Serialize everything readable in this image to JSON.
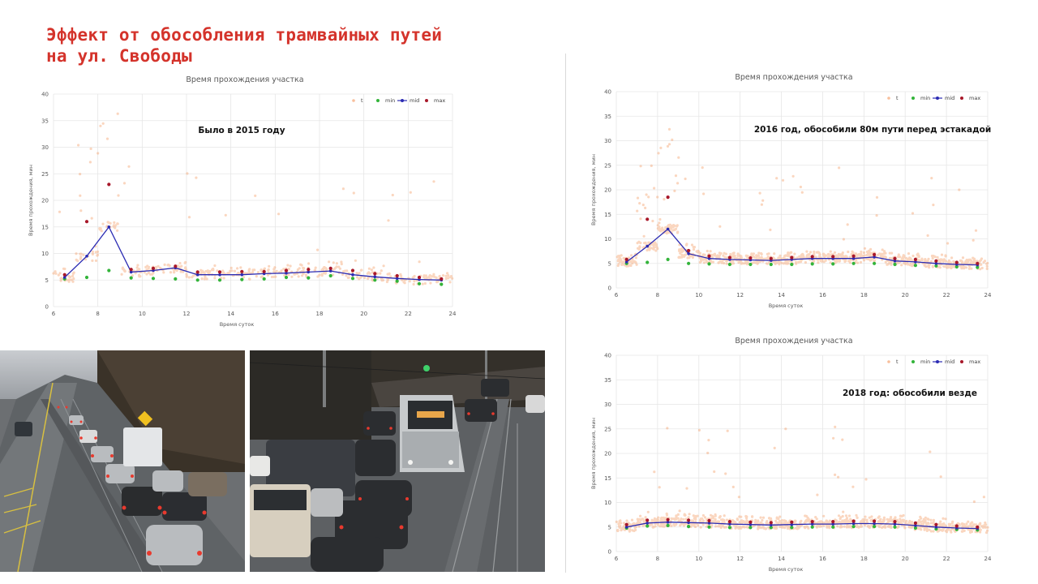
{
  "slide": {
    "title": "Эффект от обособления трамвайных путей\nна ул. Свободы",
    "title_color": "#d4332b"
  },
  "colors": {
    "t": "#f4955a",
    "min": "#33b43a",
    "mid": "#2b2bb3",
    "max": "#a8182a",
    "grid": "#e6e6e6"
  },
  "photos": [
    {
      "name": "left-street-photo",
      "icon": "traffic-jam-photo"
    },
    {
      "name": "right-street-photo",
      "icon": "tram-in-traffic-photo"
    }
  ],
  "chart_data": [
    {
      "type": "scatter",
      "title": "Время прохождения участка",
      "annotation": "Было в 2015 году",
      "xlabel": "Время суток",
      "ylabel": "Время прохождения, мин",
      "xlim": [
        6,
        24
      ],
      "ylim": [
        0,
        40
      ],
      "xticks": [
        "6",
        "8",
        "10",
        "12",
        "14",
        "16",
        "18",
        "20",
        "22",
        "24"
      ],
      "yticks": [
        "0",
        "5",
        "10",
        "15",
        "20",
        "25",
        "30",
        "35",
        "40"
      ],
      "legend": [
        "t",
        "min",
        "mid",
        "max"
      ],
      "legend_position": "top-right",
      "series": [
        {
          "name": "min",
          "x": [
            6.5,
            7.5,
            8.5,
            9.5,
            10.5,
            11.5,
            12.5,
            13.5,
            14.5,
            15.5,
            16.5,
            17.5,
            18.5,
            19.5,
            20.5,
            21.5,
            22.5,
            23.5
          ],
          "y": [
            5.2,
            5.5,
            6.8,
            5.4,
            5.3,
            5.2,
            5.0,
            5.0,
            5.1,
            5.2,
            5.5,
            5.4,
            5.8,
            5.3,
            5.0,
            4.8,
            4.3,
            4.2
          ]
        },
        {
          "name": "mid",
          "x": [
            6.5,
            7.5,
            8.5,
            9.5,
            10.5,
            11.5,
            12.5,
            13.5,
            14.5,
            15.5,
            16.5,
            17.5,
            18.5,
            19.5,
            20.5,
            21.5,
            22.5,
            23.5
          ],
          "y": [
            5.5,
            9.5,
            15.0,
            6.5,
            6.8,
            7.3,
            6.0,
            6.0,
            6.0,
            6.2,
            6.3,
            6.5,
            6.7,
            6.0,
            5.6,
            5.3,
            5.1,
            5.0
          ]
        },
        {
          "name": "max",
          "x": [
            6.5,
            7.5,
            8.5,
            9.5,
            10.5,
            11.5,
            12.5,
            13.5,
            14.5,
            15.5,
            16.5,
            17.5,
            18.5,
            19.5,
            20.5,
            21.5,
            22.5,
            23.5
          ],
          "y": [
            6.0,
            16.0,
            23.0,
            7.0,
            7.2,
            7.6,
            6.5,
            6.5,
            6.6,
            6.6,
            6.8,
            7.0,
            7.2,
            6.8,
            6.2,
            5.8,
            5.5,
            5.2
          ]
        }
      ]
    },
    {
      "type": "scatter",
      "title": "Время прохождения участка",
      "annotation": "2016 год, обособили 80м пути перед эстакадой",
      "xlabel": "Время суток",
      "ylabel": "Время прохождения, мин",
      "xlim": [
        6,
        24
      ],
      "ylim": [
        0,
        40
      ],
      "xticks": [
        "6",
        "8",
        "10",
        "12",
        "14",
        "16",
        "18",
        "20",
        "22",
        "24"
      ],
      "yticks": [
        "0",
        "5",
        "10",
        "15",
        "20",
        "25",
        "30",
        "35",
        "40"
      ],
      "legend": [
        "t",
        "min",
        "mid",
        "max"
      ],
      "legend_position": "top-right",
      "series": [
        {
          "name": "min",
          "x": [
            6.5,
            7.5,
            8.5,
            9.5,
            10.5,
            11.5,
            12.5,
            13.5,
            14.5,
            15.5,
            16.5,
            17.5,
            18.5,
            19.5,
            20.5,
            21.5,
            22.5,
            23.5
          ],
          "y": [
            5.0,
            5.2,
            5.8,
            5.0,
            4.9,
            4.8,
            4.8,
            4.8,
            4.8,
            4.9,
            4.9,
            5.0,
            5.0,
            4.8,
            4.6,
            4.5,
            4.3,
            4.2
          ]
        },
        {
          "name": "mid",
          "x": [
            6.5,
            7.5,
            8.5,
            9.5,
            10.5,
            11.5,
            12.5,
            13.5,
            14.5,
            15.5,
            16.5,
            17.5,
            18.5,
            19.5,
            20.5,
            21.5,
            22.5,
            23.5
          ],
          "y": [
            5.3,
            8.5,
            12.0,
            7.0,
            6.0,
            5.8,
            5.7,
            5.6,
            5.8,
            6.0,
            6.0,
            6.0,
            6.3,
            5.5,
            5.3,
            5.0,
            4.8,
            4.7
          ]
        },
        {
          "name": "max",
          "x": [
            6.5,
            7.5,
            8.5,
            9.5,
            10.5,
            11.5,
            12.5,
            13.5,
            14.5,
            15.5,
            16.5,
            17.5,
            18.5,
            19.5,
            20.5,
            21.5,
            22.5,
            23.5
          ],
          "y": [
            5.8,
            14.0,
            18.5,
            7.6,
            6.5,
            6.2,
            6.1,
            6.0,
            6.2,
            6.4,
            6.4,
            6.5,
            6.8,
            6.0,
            5.8,
            5.5,
            5.2,
            5.0
          ]
        }
      ]
    },
    {
      "type": "scatter",
      "title": "Время прохождения участка",
      "annotation": "2018 год: обособили везде",
      "xlabel": "Время суток",
      "ylabel": "Время прохождения, мин",
      "xlim": [
        6,
        24
      ],
      "ylim": [
        0,
        40
      ],
      "xticks": [
        "6",
        "8",
        "10",
        "12",
        "14",
        "16",
        "18",
        "20",
        "22",
        "24"
      ],
      "yticks": [
        "0",
        "5",
        "10",
        "15",
        "20",
        "25",
        "30",
        "35",
        "40"
      ],
      "legend": [
        "t",
        "min",
        "mid",
        "max"
      ],
      "legend_position": "top-right",
      "series": [
        {
          "name": "min",
          "x": [
            6.5,
            7.5,
            8.5,
            9.5,
            10.5,
            11.5,
            12.5,
            13.5,
            14.5,
            15.5,
            16.5,
            17.5,
            18.5,
            19.5,
            20.5,
            21.5,
            22.5,
            23.5
          ],
          "y": [
            4.8,
            5.2,
            5.3,
            5.1,
            5.0,
            4.9,
            4.9,
            4.9,
            4.9,
            5.0,
            5.0,
            5.1,
            5.1,
            5.0,
            4.8,
            4.6,
            4.5,
            4.4
          ]
        },
        {
          "name": "mid",
          "x": [
            6.5,
            7.5,
            8.5,
            9.5,
            10.5,
            11.5,
            12.5,
            13.5,
            14.5,
            15.5,
            16.5,
            17.5,
            18.5,
            19.5,
            20.5,
            21.5,
            22.5,
            23.5
          ],
          "y": [
            5.0,
            5.8,
            6.0,
            5.9,
            5.8,
            5.6,
            5.5,
            5.4,
            5.5,
            5.6,
            5.6,
            5.7,
            5.7,
            5.6,
            5.3,
            5.0,
            4.8,
            4.7
          ]
        },
        {
          "name": "max",
          "x": [
            6.5,
            7.5,
            8.5,
            9.5,
            10.5,
            11.5,
            12.5,
            13.5,
            14.5,
            15.5,
            16.5,
            17.5,
            18.5,
            19.5,
            20.5,
            21.5,
            22.5,
            23.5
          ],
          "y": [
            5.5,
            6.4,
            6.5,
            6.4,
            6.3,
            6.1,
            6.0,
            5.9,
            6.0,
            6.1,
            6.1,
            6.2,
            6.2,
            6.1,
            5.8,
            5.5,
            5.2,
            5.0
          ]
        }
      ]
    }
  ]
}
